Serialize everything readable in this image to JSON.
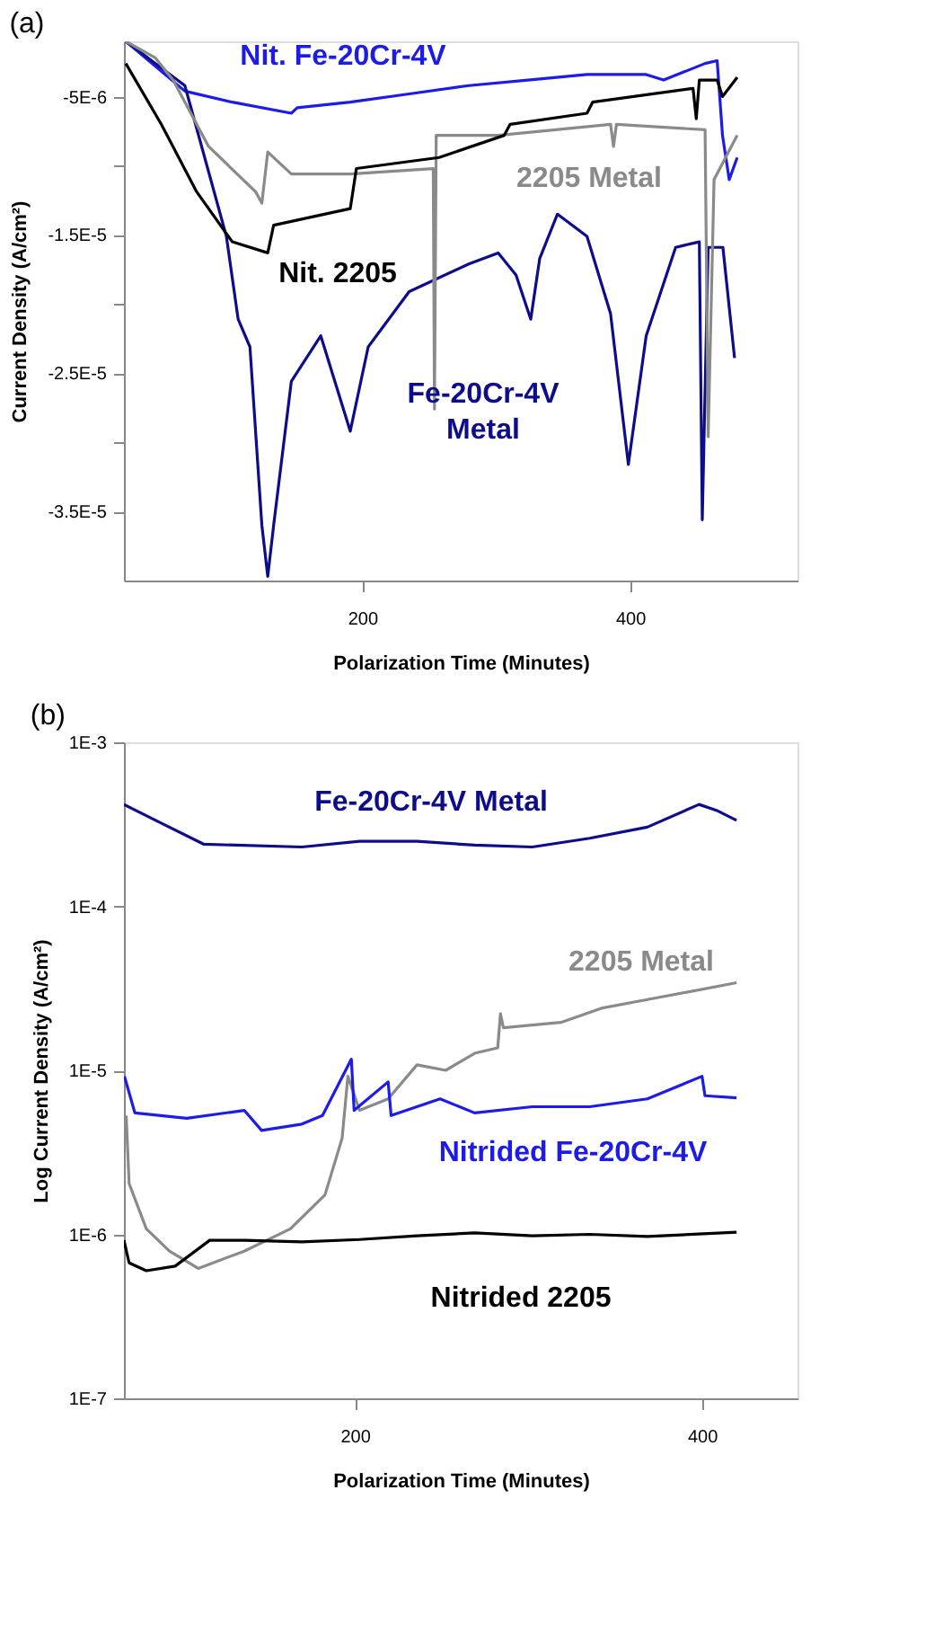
{
  "chart_data": [
    {
      "type": "line",
      "title": "(a)",
      "xlabel": "Polarization Time (Minutes)",
      "ylabel": "Current Density (A/cm²)",
      "xlim": [
        22,
        525
      ],
      "xticks": [
        200,
        400
      ],
      "ylim": [
        -4e-05,
        -1e-06
      ],
      "yticks": [
        {
          "value": -5e-06,
          "label": "-5E-6"
        },
        {
          "value": -1e-05,
          "label": null
        },
        {
          "value": -1.5e-05,
          "label": "-1.5E-5"
        },
        {
          "value": -2e-05,
          "label": null
        },
        {
          "value": -2.5e-05,
          "label": "-2.5E-5"
        },
        {
          "value": -3e-05,
          "label": null
        },
        {
          "value": -3.5e-05,
          "label": "-3.5E-5"
        }
      ],
      "grid": false,
      "line_style": "solid",
      "series": [
        {
          "name": "Nit. Fe-20Cr-4V",
          "color": "#1c1ce6",
          "x": [
            23.4,
            67.5,
            102.9,
            147,
            151.4,
            191,
            235,
            279.5,
            323.6,
            367.8,
            412,
            425,
            456,
            465,
            469,
            474,
            480
          ],
          "values": [
            -1e-06,
            -4.6e-06,
            -5.4e-06,
            -6.2e-06,
            -5.8e-06,
            -5.4e-06,
            -4.8e-06,
            -4.2e-06,
            -3.8e-06,
            -3.4e-06,
            -3.4e-06,
            -3.8e-06,
            -2.6e-06,
            -2.4e-06,
            -7.8e-06,
            -1.1e-05,
            -9.4e-06
          ]
        },
        {
          "name": "Fe-20Cr-4V Metal",
          "color": "#0d0d8c",
          "x": [
            23.4,
            67.5,
            98.5,
            107.3,
            116.1,
            125,
            129.4,
            133.8,
            147,
            169,
            191,
            204.4,
            235,
            279.5,
            301.5,
            314.8,
            325.8,
            332.5,
            345.7,
            367.8,
            385.4,
            398.7,
            412,
            434,
            451.7,
            453.9,
            458.3,
            469.3,
            478
          ],
          "values": [
            -1e-06,
            -4.2e-06,
            -1.51e-05,
            -2.11e-05,
            -2.31e-05,
            -3.6e-05,
            -3.97e-05,
            -3.6e-05,
            -2.56e-05,
            -2.23e-05,
            -2.92e-05,
            -2.31e-05,
            -1.91e-05,
            -1.71e-05,
            -1.63e-05,
            -1.79e-05,
            -2.11e-05,
            -1.67e-05,
            -1.35e-05,
            -1.51e-05,
            -2.07e-05,
            -3.16e-05,
            -2.23e-05,
            -1.59e-05,
            -1.55e-05,
            -3.56e-05,
            -1.59e-05,
            -1.59e-05,
            -2.39e-05
          ]
        },
        {
          "name": "2205 Metal",
          "color": "#8a8a8a",
          "x": [
            23.4,
            45.5,
            58.7,
            85.2,
            120.5,
            125,
            129.4,
            147,
            191,
            253,
            253.9,
            255.2,
            301.5,
            385.4,
            387.6,
            389.8,
            456,
            458.3,
            462.7,
            480
          ],
          "values": [
            -1e-06,
            -2.2e-06,
            -3.8e-06,
            -8.6e-06,
            -1.19e-05,
            -1.27e-05,
            -9e-06,
            -1.06e-05,
            -1.06e-05,
            -1.02e-05,
            -2.76e-05,
            -7.8e-06,
            -7.8e-06,
            -7e-06,
            -8.6e-06,
            -7e-06,
            -7.4e-06,
            -2.96e-05,
            -1.1e-05,
            -7.8e-06
          ]
        },
        {
          "name": "Nit. 2205",
          "color": "#000000",
          "x": [
            23.4,
            49.9,
            76.4,
            102.9,
            129.4,
            133.8,
            191,
            195.6,
            257.4,
            306,
            310.4,
            367.8,
            372,
            447,
            449.4,
            451.7,
            465,
            469,
            480
          ],
          "values": [
            -2.6e-06,
            -7e-06,
            -1.19e-05,
            -1.55e-05,
            -1.63e-05,
            -1.43e-05,
            -1.31e-05,
            -1.02e-05,
            -9.4e-06,
            -7.8e-06,
            -7e-06,
            -6.2e-06,
            -5.4e-06,
            -4.4e-06,
            -6.6e-06,
            -3.8e-06,
            -3.8e-06,
            -5e-06,
            -3.6e-06
          ]
        }
      ]
    },
    {
      "type": "line",
      "title": "(b)",
      "xlabel": "Polarization Time (Minutes)",
      "ylabel": "Log Current Density (A/cm²)",
      "xlim": [
        67,
        455
      ],
      "xticks": [
        200,
        400
      ],
      "ylim": [
        1e-07,
        0.001
      ],
      "yticks": [
        {
          "value": 0.001,
          "label": "1E-3"
        },
        {
          "value": 0.0001,
          "label": "1E-4"
        },
        {
          "value": 1e-05,
          "label": "1E-5"
        },
        {
          "value": 1e-06,
          "label": "1E-6"
        },
        {
          "value": 1e-07,
          "label": "1E-7"
        }
      ],
      "log": true,
      "grid": false,
      "line_style": "solid",
      "series": [
        {
          "name": "Fe-20Cr-4V Metal",
          "color": "#0d0d8c",
          "x": [
            67,
            86.6,
            113.1,
            169.5,
            202.7,
            235.8,
            269,
            302.2,
            335.3,
            368.5,
            398.3,
            408.3,
            419.9
          ],
          "values": [
            0.000418,
            0.000329,
            0.000239,
            0.00023,
            0.000249,
            0.000249,
            0.000236,
            0.00023,
            0.00026,
            0.000304,
            0.000418,
            0.000385,
            0.000334
          ]
        },
        {
          "name": "2205 Metal",
          "color": "#8a8a8a",
          "x": [
            68.3,
            70,
            79.9,
            93.2,
            109.8,
            136.3,
            162.9,
            182.8,
            192.7,
            196,
            202.7,
            219.2,
            235.8,
            252.4,
            269,
            282.3,
            283.9,
            285.6,
            318.7,
            342,
            368.5,
            419.9
          ],
          "values": [
            5.3e-06,
            2.04e-06,
            1.08e-06,
            7.9e-07,
            6.2e-07,
            7.9e-07,
            1.08e-06,
            1.74e-06,
            3.86e-06,
            9.2e-06,
            5.7e-06,
            6.7e-06,
            1.08e-05,
            1e-05,
            1.27e-05,
            1.37e-05,
            2.21e-05,
            1.82e-05,
            1.96e-05,
            2.39e-05,
            2.7e-05,
            3.42e-05
          ]
        },
        {
          "name": "Nitrided Fe-20Cr-4V",
          "color": "#1c1ce6",
          "x": [
            67.3,
            73.3,
            103.2,
            136.3,
            146.3,
            169.5,
            181.4,
            198,
            199.6,
            219.2,
            220.9,
            249.1,
            269,
            302.2,
            335.3,
            368.5,
            400,
            401.7,
            419.9
          ],
          "values": [
            9.2e-06,
            5.5e-06,
            5.1e-06,
            5.7e-06,
            4.3e-06,
            4.7e-06,
            5.3e-06,
            1.17e-05,
            5.7e-06,
            8.5e-06,
            5.3e-06,
            6.7e-06,
            5.5e-06,
            6e-06,
            6e-06,
            6.7e-06,
            9.2e-06,
            7e-06,
            6.8e-06
          ]
        },
        {
          "name": "Nitrided 2205",
          "color": "#000000",
          "x": [
            67,
            70,
            79.9,
            96.5,
            116.4,
            136.3,
            169.5,
            202.7,
            235.8,
            269,
            302.2,
            335.3,
            368.5,
            419.9
          ],
          "values": [
            9.2e-07,
            6.7e-07,
            6e-07,
            6.4e-07,
            9.2e-07,
            9.2e-07,
            9e-07,
            9.3e-07,
            9.8e-07,
            1.02e-06,
            9.8e-07,
            1e-06,
            9.7e-07,
            1.03e-06
          ]
        }
      ]
    }
  ]
}
